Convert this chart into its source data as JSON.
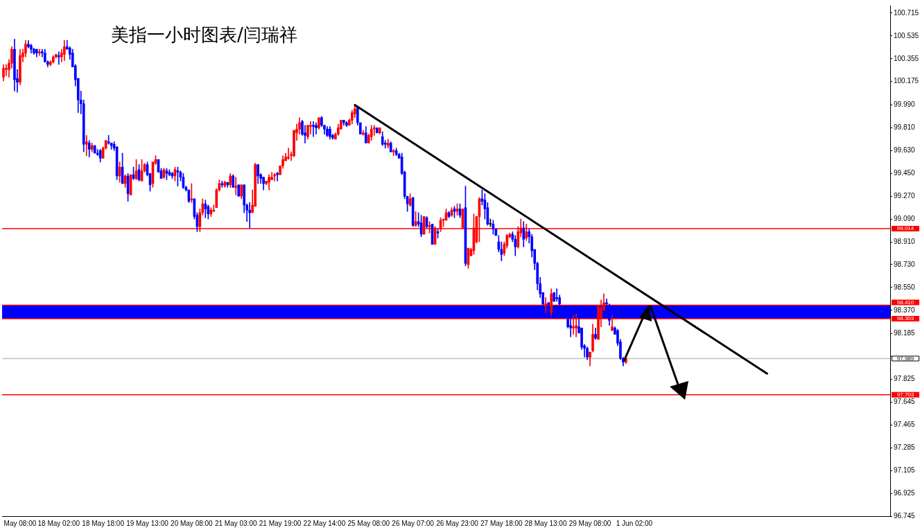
{
  "chart_data": {
    "type": "candlestick",
    "title": "美指一小时图表/闫瑞祥",
    "categories": [
      null,
      null,
      null,
      null,
      null,
      null,
      "May 08:00",
      null,
      null,
      null,
      null,
      null,
      null,
      null,
      null,
      null,
      null,
      null,
      null,
      null,
      "18 May 02:00",
      null,
      null,
      null,
      null,
      null,
      null,
      null,
      null,
      null,
      null,
      null,
      null,
      null,
      null,
      null,
      "18 May 18:00",
      null,
      null,
      null,
      null,
      null,
      null,
      null,
      null,
      null,
      null,
      null,
      null,
      null,
      null,
      null,
      "19 May 13:00",
      null,
      null,
      null,
      null,
      null,
      null,
      null,
      null,
      null,
      null,
      null,
      null,
      null,
      null,
      null,
      "20 May 08:00",
      null,
      null,
      null,
      null,
      null,
      null,
      null,
      null,
      null,
      null,
      null,
      null,
      null,
      null,
      null,
      "21 May 03:00",
      null,
      null,
      null,
      null,
      null,
      null,
      null,
      null,
      null,
      null,
      null,
      null,
      null,
      null,
      null,
      "21 May 19:00",
      null,
      null,
      null,
      null,
      null,
      null,
      null,
      null,
      null,
      null,
      null,
      null,
      null,
      null,
      null,
      "22 May 14:00",
      null,
      null,
      null,
      null,
      null,
      null,
      null,
      null,
      null,
      null,
      null,
      null,
      null,
      null,
      null,
      "25 May 08:00",
      null,
      null,
      null,
      null,
      null,
      null,
      null,
      null,
      null,
      null,
      null,
      null,
      null,
      null,
      null,
      "26 May 07:00",
      null,
      null,
      null,
      null,
      null,
      null,
      null,
      null,
      null,
      null,
      null,
      null,
      null,
      null,
      null,
      "26 May 23:00",
      null,
      null,
      null,
      null,
      null,
      null,
      null,
      null,
      null,
      null,
      null,
      null,
      null,
      null,
      null,
      "27 May 18:00",
      null,
      null,
      null,
      null,
      null,
      null,
      null,
      null,
      null,
      null,
      null,
      null,
      null,
      null,
      null,
      "28 May 13:00",
      null,
      null,
      null,
      null,
      null,
      null,
      null,
      null,
      null,
      null,
      null,
      null,
      null,
      null,
      null,
      "29 May 08:00",
      null,
      null,
      null,
      null,
      null,
      null,
      null,
      null,
      null,
      null,
      null,
      null,
      null,
      null,
      null,
      "1 Jun 02:00",
      null,
      null,
      null,
      null,
      null,
      null,
      null,
      null,
      null,
      null,
      null,
      null,
      null,
      null,
      null,
      null,
      null,
      null,
      null,
      null,
      null,
      null,
      null,
      null,
      null,
      null,
      null,
      null,
      null,
      null,
      null,
      null,
      null,
      null,
      null,
      null,
      null,
      null,
      null,
      null,
      null,
      null,
      null,
      null,
      null,
      null,
      null,
      null,
      null,
      null,
      null,
      null,
      null,
      null,
      null,
      null,
      null,
      null,
      null,
      null,
      null,
      null,
      null,
      null,
      null,
      null,
      null,
      null,
      null,
      null,
      null,
      null,
      null,
      null,
      null,
      null,
      null,
      null,
      null,
      null,
      null,
      null,
      null,
      null,
      null,
      null,
      null,
      null,
      null,
      null,
      null,
      null
    ],
    "ohlc": [
      [
        100.21,
        100.31,
        100.18,
        100.28
      ],
      [
        100.27,
        100.31,
        100.22,
        100.28
      ],
      [
        100.27,
        100.35,
        100.21,
        100.32
      ],
      [
        100.32,
        100.45,
        100.28,
        100.43
      ],
      [
        100.43,
        100.51,
        100.1,
        100.19
      ],
      [
        100.2,
        100.27,
        100.09,
        100.17
      ],
      [
        100.17,
        100.43,
        100.15,
        100.38
      ],
      [
        100.37,
        100.43,
        100.33,
        100.4
      ],
      [
        100.4,
        100.5,
        100.37,
        100.47
      ],
      [
        100.47,
        100.5,
        100.44,
        100.45
      ],
      [
        100.46,
        100.47,
        100.4,
        100.43
      ],
      [
        100.43,
        100.44,
        100.39,
        100.4
      ],
      [
        100.43,
        100.43,
        100.37,
        100.4
      ],
      [
        100.4,
        100.43,
        100.38,
        100.41
      ],
      [
        100.41,
        100.43,
        100.37,
        100.4
      ],
      [
        100.4,
        100.43,
        100.33,
        100.33
      ],
      [
        100.33,
        100.34,
        100.29,
        100.31
      ],
      [
        100.31,
        100.34,
        100.3,
        100.33
      ],
      [
        100.33,
        100.38,
        100.32,
        100.37
      ],
      [
        100.37,
        100.39,
        100.36,
        100.39
      ],
      [
        100.38,
        100.41,
        100.31,
        100.37
      ],
      [
        100.37,
        100.43,
        100.33,
        100.4
      ],
      [
        100.39,
        100.5,
        100.34,
        100.45
      ],
      [
        100.45,
        100.5,
        100.43,
        100.43
      ],
      [
        100.44,
        100.45,
        100.35,
        100.39
      ],
      [
        100.4,
        100.43,
        100.29,
        100.29
      ],
      [
        100.3,
        100.31,
        100.14,
        100.19
      ],
      [
        100.2,
        100.2,
        99.93,
        100.03
      ],
      [
        100.03,
        100.1,
        99.92,
        100.0
      ],
      [
        100.0,
        100.03,
        99.62,
        99.68
      ],
      [
        99.68,
        99.75,
        99.59,
        99.7
      ],
      [
        99.69,
        99.71,
        99.58,
        99.64
      ],
      [
        99.64,
        99.69,
        99.62,
        99.67
      ],
      [
        99.67,
        99.67,
        99.61,
        99.61
      ],
      [
        99.61,
        99.64,
        99.59,
        99.6
      ],
      [
        99.63,
        99.64,
        99.54,
        99.57
      ],
      [
        99.57,
        99.66,
        99.57,
        99.65
      ],
      [
        99.65,
        99.71,
        99.64,
        99.71
      ],
      [
        99.7,
        99.75,
        99.68,
        99.69
      ],
      [
        99.69,
        99.69,
        99.64,
        99.67
      ],
      [
        99.68,
        99.7,
        99.63,
        99.65
      ],
      [
        99.66,
        99.66,
        99.4,
        99.43
      ],
      [
        99.43,
        99.54,
        99.38,
        99.5
      ],
      [
        99.5,
        99.61,
        99.37,
        99.37
      ],
      [
        99.37,
        99.44,
        99.34,
        99.43
      ],
      [
        99.43,
        99.45,
        99.23,
        99.29
      ],
      [
        99.28,
        99.44,
        99.28,
        99.44
      ],
      [
        99.44,
        99.5,
        99.4,
        99.41
      ],
      [
        99.41,
        99.56,
        99.4,
        99.47
      ],
      [
        99.48,
        99.52,
        99.39,
        99.4
      ],
      [
        99.39,
        99.56,
        99.39,
        99.47
      ],
      [
        99.47,
        99.53,
        99.46,
        99.52
      ],
      [
        99.52,
        99.54,
        99.43,
        99.44
      ],
      [
        99.45,
        99.45,
        99.31,
        99.36
      ],
      [
        99.37,
        99.54,
        99.34,
        99.54
      ],
      [
        99.53,
        99.59,
        99.52,
        99.56
      ],
      [
        99.56,
        99.56,
        99.46,
        99.46
      ],
      [
        99.47,
        99.49,
        99.41,
        99.41
      ],
      [
        99.42,
        99.49,
        99.41,
        99.48
      ],
      [
        99.47,
        99.49,
        99.4,
        99.45
      ],
      [
        99.46,
        99.48,
        99.43,
        99.44
      ],
      [
        99.45,
        99.46,
        99.41,
        99.43
      ],
      [
        99.43,
        99.5,
        99.39,
        99.48
      ],
      [
        99.47,
        99.5,
        99.35,
        99.46
      ],
      [
        99.46,
        99.47,
        99.39,
        99.42
      ],
      [
        99.42,
        99.45,
        99.33,
        99.34
      ],
      [
        99.34,
        99.35,
        99.31,
        99.32
      ],
      [
        99.32,
        99.32,
        99.22,
        99.23
      ],
      [
        99.24,
        99.37,
        99.22,
        99.25
      ],
      [
        99.25,
        99.25,
        99.09,
        99.11
      ],
      [
        99.12,
        99.14,
        98.99,
        99.03
      ],
      [
        99.03,
        99.17,
        98.99,
        99.14
      ],
      [
        99.14,
        99.25,
        99.12,
        99.21
      ],
      [
        99.21,
        99.24,
        99.1,
        99.17
      ],
      [
        99.19,
        99.2,
        99.09,
        99.13
      ],
      [
        99.13,
        99.18,
        99.11,
        99.16
      ],
      [
        99.15,
        99.2,
        99.15,
        99.16
      ],
      [
        99.18,
        99.33,
        99.18,
        99.32
      ],
      [
        99.32,
        99.4,
        99.31,
        99.37
      ],
      [
        99.37,
        99.39,
        99.34,
        99.36
      ],
      [
        99.35,
        99.39,
        99.34,
        99.38
      ],
      [
        99.38,
        99.38,
        99.34,
        99.36
      ],
      [
        99.36,
        99.45,
        99.34,
        99.43
      ],
      [
        99.43,
        99.44,
        99.34,
        99.34
      ],
      [
        99.34,
        99.42,
        99.28,
        99.35
      ],
      [
        99.36,
        99.36,
        99.27,
        99.27
      ],
      [
        99.27,
        99.36,
        99.25,
        99.36
      ],
      [
        99.36,
        99.36,
        99.14,
        99.2
      ],
      [
        99.2,
        99.21,
        99.07,
        99.16
      ],
      [
        99.16,
        99.22,
        99.02,
        99.14
      ],
      [
        99.14,
        99.32,
        99.14,
        99.2
      ],
      [
        99.19,
        99.53,
        99.19,
        99.52
      ],
      [
        99.52,
        99.52,
        99.37,
        99.43
      ],
      [
        99.44,
        99.45,
        99.37,
        99.41
      ],
      [
        99.42,
        99.42,
        99.32,
        99.37
      ],
      [
        99.37,
        99.39,
        99.36,
        99.39
      ],
      [
        99.38,
        99.44,
        99.32,
        99.42
      ],
      [
        99.4,
        99.46,
        99.4,
        99.42
      ],
      [
        99.43,
        99.45,
        99.39,
        99.44
      ],
      [
        99.45,
        99.46,
        99.39,
        99.44
      ],
      [
        99.44,
        99.51,
        99.44,
        99.51
      ],
      [
        99.51,
        99.59,
        99.49,
        99.56
      ],
      [
        99.55,
        99.61,
        99.55,
        99.58
      ],
      [
        99.57,
        99.65,
        99.56,
        99.58
      ],
      [
        99.59,
        99.62,
        99.55,
        99.6
      ],
      [
        99.59,
        99.79,
        99.58,
        99.79
      ],
      [
        99.77,
        99.84,
        99.71,
        99.8
      ],
      [
        99.8,
        99.89,
        99.76,
        99.85
      ],
      [
        99.86,
        99.87,
        99.75,
        99.76
      ],
      [
        99.77,
        99.83,
        99.69,
        99.75
      ],
      [
        99.74,
        99.83,
        99.72,
        99.83
      ],
      [
        99.82,
        99.86,
        99.76,
        99.83
      ],
      [
        99.83,
        99.86,
        99.74,
        99.82
      ],
      [
        99.83,
        99.85,
        99.76,
        99.81
      ],
      [
        99.81,
        99.89,
        99.8,
        99.89
      ],
      [
        99.89,
        99.9,
        99.82,
        99.83
      ],
      [
        99.83,
        99.83,
        99.76,
        99.8
      ],
      [
        99.8,
        99.82,
        99.74,
        99.75
      ],
      [
        99.8,
        99.82,
        99.72,
        99.74
      ],
      [
        99.75,
        99.76,
        99.72,
        99.73
      ],
      [
        99.72,
        99.77,
        99.72,
        99.76
      ],
      [
        99.76,
        99.84,
        99.75,
        99.81
      ],
      [
        99.8,
        99.87,
        99.8,
        99.87
      ],
      [
        99.87,
        99.87,
        99.83,
        99.85
      ],
      [
        99.85,
        99.86,
        99.82,
        99.83
      ],
      [
        99.83,
        99.88,
        99.83,
        99.87
      ],
      [
        99.87,
        99.95,
        99.84,
        99.93
      ],
      [
        99.92,
        99.99,
        99.89,
        99.96
      ],
      [
        99.97,
        99.97,
        99.83,
        99.85
      ],
      [
        99.85,
        99.85,
        99.76,
        99.76
      ],
      [
        99.76,
        99.79,
        99.75,
        99.77
      ],
      [
        99.77,
        99.82,
        99.69,
        99.69
      ],
      [
        99.69,
        99.76,
        99.69,
        99.75
      ],
      [
        99.74,
        99.83,
        99.71,
        99.8
      ],
      [
        99.8,
        99.83,
        99.75,
        99.81
      ],
      [
        99.81,
        99.81,
        99.77,
        99.77
      ],
      [
        99.77,
        99.81,
        99.76,
        99.81
      ],
      [
        99.74,
        99.78,
        99.67,
        99.68
      ],
      [
        99.69,
        99.71,
        99.65,
        99.68
      ],
      [
        99.67,
        99.72,
        99.65,
        99.69
      ],
      [
        99.69,
        99.7,
        99.62,
        99.62
      ],
      [
        99.62,
        99.64,
        99.59,
        99.63
      ],
      [
        99.63,
        99.65,
        99.59,
        99.6
      ],
      [
        99.6,
        99.61,
        99.57,
        99.57
      ],
      [
        99.58,
        99.61,
        99.44,
        99.45
      ],
      [
        99.46,
        99.47,
        99.25,
        99.27
      ],
      [
        99.27,
        99.27,
        99.15,
        99.21
      ],
      [
        99.2,
        99.29,
        99.19,
        99.25
      ],
      [
        99.26,
        99.26,
        99.03,
        99.04
      ],
      [
        99.04,
        99.15,
        99.03,
        99.07
      ],
      [
        99.07,
        99.14,
        99.03,
        99.05
      ],
      [
        99.06,
        99.12,
        98.95,
        98.97
      ],
      [
        98.97,
        99.11,
        98.97,
        99.11
      ],
      [
        99.1,
        99.11,
        99.02,
        99.03
      ],
      [
        99.03,
        99.07,
        98.98,
        99.04
      ],
      [
        99.05,
        99.05,
        98.89,
        98.89
      ],
      [
        98.89,
        99.03,
        98.89,
        99.02
      ],
      [
        98.99,
        99.01,
        98.94,
        98.98
      ],
      [
        99.01,
        99.1,
        98.99,
        99.08
      ],
      [
        99.08,
        99.09,
        99.03,
        99.09
      ],
      [
        99.08,
        99.17,
        99.08,
        99.14
      ],
      [
        99.14,
        99.15,
        99.1,
        99.11
      ],
      [
        99.12,
        99.18,
        99.11,
        99.16
      ],
      [
        99.17,
        99.19,
        99.1,
        99.15
      ],
      [
        99.15,
        99.21,
        99.12,
        99.17
      ],
      [
        99.17,
        99.21,
        99.1,
        99.12
      ],
      [
        99.02,
        99.17,
        99.02,
        99.17
      ],
      [
        99.18,
        99.35,
        98.72,
        98.74
      ],
      [
        98.73,
        98.86,
        98.7,
        98.86
      ],
      [
        98.8,
        98.86,
        98.8,
        98.85
      ],
      [
        98.84,
        99.13,
        98.81,
        99.02
      ],
      [
        98.91,
        99.11,
        98.9,
        99.11
      ],
      [
        99.11,
        99.26,
        98.91,
        99.25
      ],
      [
        99.25,
        99.32,
        99.2,
        99.23
      ],
      [
        99.24,
        99.29,
        99.09,
        99.17
      ],
      [
        99.18,
        99.22,
        99.04,
        99.05
      ],
      [
        99.05,
        99.09,
        99.03,
        99.05
      ],
      [
        99.05,
        99.08,
        98.97,
        99.01
      ],
      [
        99.01,
        99.01,
        98.96,
        98.96
      ],
      [
        98.91,
        98.96,
        98.83,
        98.85
      ],
      [
        98.85,
        98.91,
        98.76,
        98.81
      ],
      [
        98.82,
        98.91,
        98.8,
        98.89
      ],
      [
        98.88,
        98.97,
        98.86,
        98.96
      ],
      [
        98.95,
        98.98,
        98.94,
        98.97
      ],
      [
        98.97,
        98.99,
        98.91,
        98.93
      ],
      [
        98.93,
        98.96,
        98.8,
        98.87
      ],
      [
        98.87,
        99.03,
        98.86,
        98.99
      ],
      [
        98.98,
        99.09,
        98.95,
        99.02
      ],
      [
        99.02,
        99.07,
        98.87,
        98.93
      ],
      [
        98.94,
        99.05,
        98.92,
        98.99
      ],
      [
        98.99,
        99.01,
        98.9,
        98.95
      ],
      [
        98.95,
        98.97,
        98.79,
        98.84
      ],
      [
        98.85,
        98.85,
        98.69,
        98.74
      ],
      [
        98.74,
        98.75,
        98.53,
        98.58
      ],
      [
        98.58,
        98.63,
        98.47,
        98.5
      ],
      [
        98.51,
        98.51,
        98.4,
        98.42
      ],
      [
        98.4,
        98.47,
        98.35,
        98.42
      ],
      [
        98.43,
        98.43,
        98.41,
        98.41
      ],
      [
        98.35,
        98.54,
        98.33,
        98.5
      ],
      [
        98.51,
        98.51,
        98.44,
        98.44
      ],
      [
        98.47,
        98.54,
        98.44,
        98.46
      ],
      [
        98.47,
        98.49,
        98.41,
        98.42
      ],
      null,
      null,
      [
        98.3,
        98.32,
        98.23,
        98.24
      ],
      [
        98.25,
        98.31,
        98.16,
        98.23
      ],
      [
        98.23,
        98.33,
        98.18,
        98.24
      ],
      [
        98.23,
        98.34,
        98.16,
        98.25
      ],
      [
        98.24,
        98.3,
        98.19,
        98.19
      ],
      [
        98.23,
        98.23,
        98.06,
        98.08
      ],
      [
        98.09,
        98.1,
        98.0,
        98.07
      ],
      [
        98.07,
        98.08,
        97.98,
        98.0
      ],
      [
        98.0,
        98.04,
        97.93,
        98.04
      ],
      [
        98.05,
        98.26,
        98.04,
        98.18
      ],
      [
        98.18,
        98.23,
        98.14,
        98.15
      ],
      [
        98.14,
        98.41,
        98.14,
        98.41
      ],
      [
        98.31,
        98.45,
        98.24,
        98.37
      ],
      [
        98.37,
        98.5,
        98.37,
        98.43
      ],
      [
        98.43,
        98.46,
        98.31,
        98.42
      ],
      [
        98.4,
        98.42,
        98.25,
        98.29
      ],
      [
        98.21,
        98.33,
        98.21,
        98.24
      ],
      [
        98.23,
        98.24,
        98.18,
        98.18
      ],
      [
        98.21,
        98.22,
        98.09,
        98.11
      ],
      [
        98.12,
        98.14,
        97.98,
        97.99
      ],
      [
        97.99,
        98.0,
        97.93,
        97.96
      ],
      [
        97.96,
        97.99,
        97.95,
        97.99
      ],
      null,
      null,
      null,
      null,
      null,
      null,
      null,
      null,
      null,
      null,
      null,
      null,
      null,
      null,
      null,
      null,
      null,
      null,
      null,
      null,
      null,
      null,
      null,
      null,
      null,
      null,
      null,
      null,
      null,
      null,
      null,
      null,
      null,
      null,
      null,
      null,
      null,
      null,
      null,
      null,
      null,
      null,
      null,
      null,
      null,
      null,
      null,
      null,
      null,
      null,
      null,
      null,
      null,
      null,
      null,
      null,
      null,
      null,
      null,
      null,
      null,
      null,
      null,
      null,
      null,
      null,
      null,
      null,
      null,
      null,
      null,
      null,
      null,
      null,
      null,
      null,
      null,
      null,
      null,
      null,
      null,
      null,
      null,
      null,
      null,
      null,
      null,
      null,
      null,
      null,
      null,
      null,
      null,
      null,
      null
    ],
    "colors": [
      "#ff0000",
      "#ff0000",
      "#ff0000",
      "#ff0000",
      "#0000ff",
      "#0000ff",
      "#ff0000",
      "#ff0000",
      "#ff0000",
      "#0000ff",
      "#0000ff",
      "#0000ff",
      "#0000ff",
      "#ff0000",
      "#0000ff",
      "#0000ff",
      "#0000ff",
      "#ff0000",
      "#ff0000",
      "#ff0000",
      "#0000ff",
      "#ff0000",
      "#ff0000",
      "#0000ff",
      "#0000ff",
      "#0000ff",
      "#0000ff",
      "#0000ff",
      "#0000ff",
      "#0000ff",
      "#ff0000",
      "#0000ff",
      "#ff0000",
      "#0000ff",
      "#0000ff",
      "#0000ff",
      "#ff0000",
      "#ff0000",
      "#0000ff",
      "#0000ff",
      "#0000ff",
      "#0000ff",
      "#ff0000",
      "#0000ff",
      "#ff0000",
      "#0000ff",
      "#ff0000",
      "#0000ff",
      "#ff0000",
      "#0000ff",
      "#ff0000",
      "#ff0000",
      "#0000ff",
      "#0000ff",
      "#ff0000",
      "#ff0000",
      "#0000ff",
      "#0000ff",
      "#ff0000",
      "#0000ff",
      "#0000ff",
      "#0000ff",
      "#ff0000",
      "#0000ff",
      "#0000ff",
      "#0000ff",
      "#0000ff",
      "#0000ff",
      "#ff0000",
      "#0000ff",
      "#0000ff",
      "#ff0000",
      "#ff0000",
      "#0000ff",
      "#0000ff",
      "#ff0000",
      "#ff0000",
      "#ff0000",
      "#ff0000",
      "#0000ff",
      "#ff0000",
      "#0000ff",
      "#ff0000",
      "#0000ff",
      "#ff0000",
      "#0000ff",
      "#ff0000",
      "#0000ff",
      "#0000ff",
      "#0000ff",
      "#ff0000",
      "#ff0000",
      "#0000ff",
      "#0000ff",
      "#0000ff",
      "#ff0000",
      "#ff0000",
      "#ff0000",
      "#ff0000",
      "#0000ff",
      "#ff0000",
      "#ff0000",
      "#ff0000",
      "#ff0000",
      "#ff0000",
      "#ff0000",
      "#ff0000",
      "#ff0000",
      "#0000ff",
      "#0000ff",
      "#ff0000",
      "#ff0000",
      "#0000ff",
      "#0000ff",
      "#ff0000",
      "#0000ff",
      "#0000ff",
      "#0000ff",
      "#0000ff",
      "#0000ff",
      "#ff0000",
      "#ff0000",
      "#ff0000",
      "#0000ff",
      "#0000ff",
      "#ff0000",
      "#ff0000",
      "#ff0000",
      "#0000ff",
      "#0000ff",
      "#ff0000",
      "#0000ff",
      "#ff0000",
      "#ff0000",
      "#ff0000",
      "#0000ff",
      "#ff0000",
      "#0000ff",
      "#0000ff",
      "#ff0000",
      "#0000ff",
      "#ff0000",
      "#0000ff",
      "#0000ff",
      "#0000ff",
      "#0000ff",
      "#0000ff",
      "#ff0000",
      "#0000ff",
      "#ff0000",
      "#0000ff",
      "#0000ff",
      "#ff0000",
      "#0000ff",
      "#ff0000",
      "#0000ff",
      "#ff0000",
      "#0000ff",
      "#ff0000",
      "#ff0000",
      "#ff0000",
      "#0000ff",
      "#ff0000",
      "#0000ff",
      "#ff0000",
      "#0000ff",
      "#ff0000",
      "#0000ff",
      "#ff0000",
      "#ff0000",
      "#ff0000",
      "#ff0000",
      "#ff0000",
      "#0000ff",
      "#0000ff",
      "#0000ff",
      "#000000",
      "#0000ff",
      "#0000ff",
      "#0000ff",
      "#0000ff",
      "#ff0000",
      "#ff0000",
      "#ff0000",
      "#0000ff",
      "#0000ff",
      "#ff0000",
      "#ff0000",
      "#0000ff",
      "#ff0000",
      "#0000ff",
      "#0000ff",
      "#0000ff",
      "#0000ff",
      "#0000ff",
      "#0000ff",
      "#ff0000",
      "#0000ff",
      "#ff0000",
      "#0000ff",
      "#0000ff",
      "#0000ff",
      null,
      null,
      "#0000ff",
      "#0000ff",
      "#ff0000",
      "#ff0000",
      "#0000ff",
      "#0000ff",
      "#0000ff",
      "#0000ff",
      "#ff0000",
      "#ff0000",
      "#0000ff",
      "#ff0000",
      "#ff0000",
      "#ff0000",
      "#0000ff",
      "#0000ff",
      "#ff0000",
      "#0000ff",
      "#0000ff",
      "#0000ff",
      "#0000ff",
      "#ff0000",
      null,
      null,
      null,
      null,
      null,
      null,
      null,
      null,
      null,
      null,
      null,
      null,
      null,
      null,
      null,
      null,
      null,
      null,
      null,
      null,
      null,
      null,
      null,
      null,
      null,
      null,
      null,
      null,
      null,
      null,
      null,
      null,
      null,
      null,
      null,
      null,
      null,
      null,
      null,
      null,
      null,
      null,
      null,
      null,
      null,
      null,
      null,
      null,
      null,
      null,
      null,
      null,
      null,
      null,
      null,
      null,
      null,
      null,
      null,
      null,
      null,
      null,
      null,
      null,
      null,
      null,
      null,
      null,
      null,
      null,
      null,
      null,
      null,
      null,
      null,
      null,
      null,
      null,
      null,
      null,
      null,
      null,
      null,
      null,
      null,
      null,
      null,
      null,
      null,
      null,
      null,
      null,
      null,
      null,
      null
    ],
    "series": [
      {
        "type": "line",
        "color": "#000000",
        "values": [
          null,
          null,
          null,
          null,
          null,
          null,
          null,
          null,
          null,
          null,
          null,
          null,
          null,
          null,
          null,
          null,
          null,
          null,
          null,
          null,
          null,
          null,
          null,
          null,
          null,
          null,
          null,
          null,
          null,
          null,
          null,
          null,
          null,
          null,
          null,
          null,
          null,
          null,
          null,
          null,
          null,
          null,
          null,
          null,
          null,
          null,
          null,
          null,
          null,
          null,
          null,
          null,
          null,
          null,
          null,
          null,
          null,
          null,
          null,
          null,
          null,
          null,
          null,
          null,
          null,
          null,
          null,
          null,
          null,
          null,
          null,
          null,
          null,
          null,
          null,
          null,
          null,
          null,
          null,
          null,
          null,
          null,
          null,
          null,
          null,
          null,
          null,
          null,
          null,
          null,
          null,
          null,
          null,
          null,
          null,
          null,
          null,
          null,
          null,
          null,
          null,
          null,
          null,
          null,
          null,
          null,
          null,
          null,
          null,
          null,
          null,
          null,
          null,
          null,
          null,
          null,
          null,
          null,
          null,
          null,
          null,
          null,
          null,
          null,
          null,
          null,
          null,
          99.99,
          null,
          null,
          null,
          null,
          null,
          null,
          null,
          null,
          null,
          null,
          null,
          null,
          null,
          null,
          null,
          null,
          null,
          null,
          null,
          null,
          null,
          null,
          null,
          null,
          null,
          null,
          null,
          null,
          null,
          null,
          null,
          null,
          null,
          null,
          null,
          null,
          null,
          null,
          null,
          null,
          null,
          null,
          null,
          null,
          null,
          null,
          null,
          null,
          null,
          null,
          null,
          null,
          null,
          null,
          null,
          null,
          null,
          null,
          null,
          null,
          null,
          null,
          null,
          null,
          null,
          null,
          null,
          null,
          null,
          null,
          null,
          null,
          null,
          null,
          null,
          null,
          null,
          null,
          null,
          null,
          null,
          null,
          null,
          null,
          null,
          null,
          null,
          null,
          null,
          null,
          null,
          null,
          null,
          null,
          null,
          null,
          null,
          null,
          null,
          null,
          null,
          null,
          null,
          null,
          null,
          null,
          null,
          null,
          null,
          null,
          null,
          null,
          null,
          null,
          null,
          null,
          null,
          null,
          null,
          null,
          null,
          null,
          null,
          null,
          null,
          null,
          null,
          null,
          null,
          null,
          null,
          null,
          null,
          null,
          null,
          null,
          null,
          null,
          null,
          null,
          null,
          null,
          null,
          null,
          null,
          null,
          null,
          null,
          97.87,
          null,
          null,
          null,
          null,
          null,
          null,
          null,
          null,
          null,
          null,
          null,
          null,
          null,
          null,
          null,
          null,
          null,
          null,
          null,
          null,
          null,
          null,
          null,
          null,
          null,
          null,
          null,
          null,
          null,
          null,
          null,
          null,
          null,
          null,
          null,
          null,
          null,
          null,
          null,
          null,
          null,
          null,
          null,
          null
        ]
      }
    ],
    "ylim": [
      96.745,
      100.775
    ],
    "yticks": [
      {
        "value": 100.715,
        "label": "100.715"
      },
      {
        "value": 100.535,
        "label": "100.535"
      },
      {
        "value": 100.355,
        "label": "100.355"
      },
      {
        "value": 100.175,
        "label": "100.175"
      },
      {
        "value": 99.99,
        "label": "99.990"
      },
      {
        "value": 99.81,
        "label": "99.810"
      },
      {
        "value": 99.63,
        "label": "99.630"
      },
      {
        "value": 99.45,
        "label": "99.450"
      },
      {
        "value": 99.27,
        "label": "99.270"
      },
      {
        "value": 99.09,
        "label": "99.090"
      },
      {
        "value": 98.91,
        "label": "98.910"
      },
      {
        "value": 98.73,
        "label": "98.730"
      },
      {
        "value": 98.55,
        "label": "98.550"
      },
      {
        "value": 98.37,
        "label": "98.370"
      },
      {
        "value": 98.185,
        "label": "98.185"
      },
      {
        "value": 98.005,
        "label": null
      },
      {
        "value": 97.825,
        "label": "97.825"
      },
      {
        "value": 97.645,
        "label": "97.645"
      },
      {
        "value": 97.465,
        "label": "97.465"
      },
      {
        "value": 97.285,
        "label": "97.285"
      },
      {
        "value": 97.105,
        "label": "97.105"
      },
      {
        "value": 96.925,
        "label": "96.925"
      },
      {
        "value": 96.745,
        "label": "96.745"
      }
    ],
    "bands": [
      {
        "axis": "y",
        "from": 98.303,
        "to": 98.41,
        "color": "#0000ff"
      }
    ],
    "ref_lines": [
      {
        "axis": "y",
        "value": 99.014,
        "label": "99.014",
        "color": "#ff0000"
      },
      {
        "axis": "y",
        "value": 98.41,
        "label": "98.410",
        "color": "#ff0000"
      },
      {
        "axis": "y",
        "value": 98.303,
        "label": "98.303",
        "color": "#ff0000"
      },
      {
        "axis": "y",
        "value": 97.989,
        "label": "97.989",
        "color": "#c0c0c0"
      },
      {
        "axis": "y",
        "value": 97.703,
        "label": "97.703",
        "color": "#ff0000"
      }
    ]
  }
}
